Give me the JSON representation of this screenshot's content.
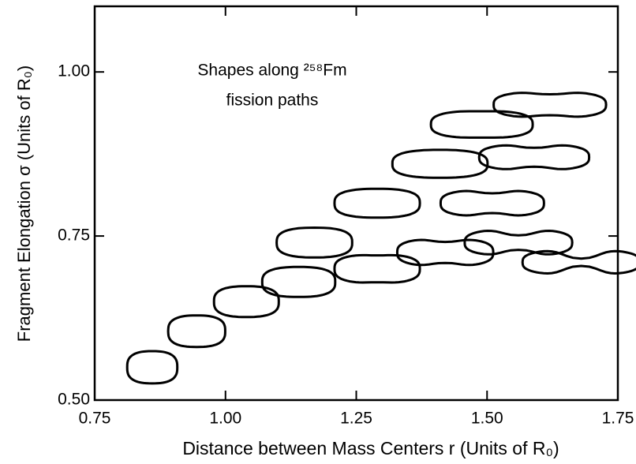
{
  "chart_data": {
    "type": "shape-scatter",
    "annotation": [
      "Shapes along ²⁵⁸Fm",
      "fission paths"
    ],
    "xlabel": "Distance between Mass Centers r (Units of R₀)",
    "ylabel": "Fragment Elongation σ (Units of R₀)",
    "x": [
      0.86,
      0.945,
      1.04,
      1.14,
      1.17,
      1.29,
      1.29,
      1.41,
      1.42,
      1.49,
      1.51,
      1.56,
      1.59,
      1.62,
      1.68
    ],
    "values": [
      0.55,
      0.605,
      0.65,
      0.68,
      0.74,
      0.8,
      0.7,
      0.86,
      0.725,
      0.92,
      0.8,
      0.74,
      0.87,
      0.95,
      0.71
    ],
    "color": "#000000",
    "xlim": [
      0.75,
      1.75
    ],
    "ylim": [
      0.5,
      1.1
    ],
    "xticks": [
      {
        "value": 0.75,
        "label": "0.75"
      },
      {
        "value": 1.0,
        "label": "1.00"
      },
      {
        "value": 1.25,
        "label": "1.25"
      },
      {
        "value": 1.5,
        "label": "1.50"
      },
      {
        "value": 1.75,
        "label": "1.75"
      }
    ],
    "yticks": [
      {
        "value": 0.5,
        "label": "0.50"
      },
      {
        "value": 0.75,
        "label": "0.75"
      },
      {
        "value": 1.0,
        "label": "1.00"
      }
    ],
    "grid": false
  }
}
